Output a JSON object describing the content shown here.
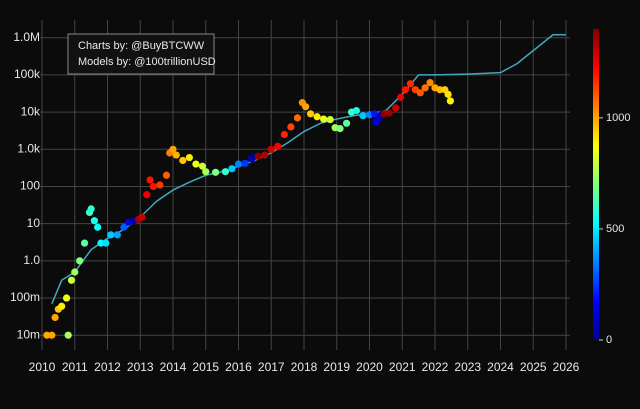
{
  "chart_data": {
    "type": "scatter",
    "log_y": true,
    "grid": true,
    "colormap": "jet",
    "annotations": [
      "Charts by: @BuyBTCWW",
      "Models by: @100trillionUSD"
    ],
    "xlim": [
      2010,
      2026
    ],
    "xticks": [
      2010,
      2011,
      2012,
      2013,
      2014,
      2015,
      2016,
      2017,
      2018,
      2019,
      2020,
      2021,
      2022,
      2023,
      2024,
      2025,
      2026
    ],
    "ylim": [
      0.004,
      3000000
    ],
    "yticks": [
      {
        "value": 0.01,
        "label": "10m"
      },
      {
        "value": 0.1,
        "label": "100m"
      },
      {
        "value": 1,
        "label": "1.0"
      },
      10,
      100,
      {
        "value": 1000,
        "label": "1.0k"
      },
      {
        "value": 10000,
        "label": "10k"
      },
      {
        "value": 100000,
        "label": "100k"
      },
      {
        "value": 1000000,
        "label": "1.0M"
      }
    ],
    "x": [
      2010.15,
      2010.3,
      2010.8,
      2010.4,
      2010.5,
      2010.6,
      2010.75,
      2010.9,
      2011.0,
      2011.15,
      2011.3,
      2011.45,
      2011.5,
      2011.6,
      2011.7,
      2011.8,
      2011.95,
      2012.1,
      2012.3,
      2012.5,
      2012.65,
      2012.8,
      2012.95,
      2013.05,
      2013.2,
      2013.3,
      2013.4,
      2013.6,
      2013.8,
      2013.9,
      2014.0,
      2014.1,
      2014.3,
      2014.5,
      2014.7,
      2014.9,
      2015.0,
      2015.3,
      2015.6,
      2015.8,
      2016.0,
      2016.2,
      2016.4,
      2016.5,
      2016.6,
      2016.8,
      2017.0,
      2017.2,
      2017.4,
      2017.6,
      2017.8,
      2017.95,
      2018.05,
      2018.2,
      2018.4,
      2018.6,
      2018.8,
      2018.95,
      2019.1,
      2019.3,
      2019.45,
      2019.6,
      2019.8,
      2020.0,
      2020.15,
      2020.2,
      2020.3,
      2020.38,
      2020.45,
      2020.6,
      2020.8,
      2020.95,
      2021.1,
      2021.25,
      2021.4,
      2021.55,
      2021.7,
      2021.85,
      2022.0,
      2022.15,
      2022.3,
      2022.4,
      2022.47
    ],
    "values": [
      0.01,
      0.01,
      0.01,
      0.03,
      0.05,
      0.06,
      0.1,
      0.3,
      0.5,
      1,
      3,
      20,
      25,
      12,
      8,
      3,
      3,
      5,
      5,
      8,
      11,
      12,
      13,
      15,
      60,
      150,
      100,
      110,
      200,
      800,
      1000,
      700,
      500,
      600,
      400,
      350,
      250,
      240,
      250,
      300,
      400,
      420,
      550,
      650,
      650,
      700,
      1000,
      1200,
      2500,
      4000,
      7000,
      18000,
      14000,
      9000,
      7500,
      6500,
      6300,
      3800,
      3600,
      5000,
      10000,
      11000,
      8000,
      8500,
      9000,
      5500,
      7000,
      8800,
      9000,
      9500,
      13000,
      25000,
      40000,
      58000,
      40000,
      33000,
      45000,
      62000,
      45000,
      40000,
      40000,
      30000,
      20000
    ],
    "color_values": [
      1000,
      1000,
      750,
      1000,
      950,
      900,
      850,
      800,
      750,
      700,
      650,
      600,
      580,
      560,
      540,
      520,
      480,
      450,
      400,
      300,
      150,
      60,
      1350,
      1300,
      1250,
      1200,
      1200,
      1150,
      1100,
      1050,
      1000,
      980,
      950,
      900,
      850,
      800,
      750,
      700,
      600,
      450,
      350,
      250,
      100,
      20,
      1380,
      1330,
      1280,
      1230,
      1180,
      1130,
      1080,
      1030,
      1000,
      950,
      900,
      850,
      800,
      750,
      700,
      650,
      600,
      550,
      450,
      350,
      200,
      150,
      80,
      20,
      1380,
      1350,
      1300,
      1250,
      1200,
      1170,
      1130,
      1100,
      1070,
      1040,
      1000,
      970,
      940,
      910,
      890
    ],
    "model": {
      "color": "#3fa9bd",
      "x": [
        2010.3,
        2010.6,
        2011.0,
        2011.5,
        2012.0,
        2012.5,
        2013.0,
        2013.5,
        2014.0,
        2014.5,
        2015.0,
        2015.5,
        2016.0,
        2016.5,
        2017.0,
        2017.5,
        2018.0,
        2018.5,
        2019.0,
        2019.5,
        2020.0,
        2020.5,
        2021.0,
        2021.5,
        2022.0,
        2023.0,
        2024.0,
        2024.5,
        2025.0,
        2025.6,
        2026.0
      ],
      "values": [
        0.07,
        0.3,
        0.5,
        2,
        4,
        7,
        15,
        40,
        80,
        130,
        200,
        250,
        350,
        500,
        800,
        1500,
        3000,
        5000,
        6500,
        8000,
        9000,
        11000,
        30000,
        100000,
        100000,
        105000,
        115000,
        200000,
        450000,
        1200000,
        1200000
      ]
    },
    "colorbar": {
      "lim": [
        0,
        1400
      ],
      "ticks": [
        0,
        500,
        1000
      ]
    }
  }
}
